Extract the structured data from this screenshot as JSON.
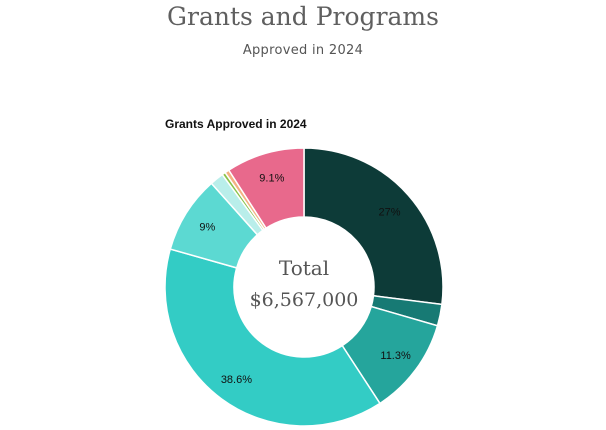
{
  "header": {
    "title": "Grants and Programs",
    "subtitle": "Approved in 2024"
  },
  "chart_data": {
    "type": "pie",
    "title": "Grants Approved in 2024",
    "donut": true,
    "center_label": {
      "line1": "Total",
      "line2": "$6,567,000"
    },
    "slices": [
      {
        "value": 27.0,
        "label": "27%",
        "color": "#0d3b38"
      },
      {
        "value": 2.5,
        "label": "",
        "color": "#177a74"
      },
      {
        "value": 11.3,
        "label": "11.3%",
        "color": "#25a59c"
      },
      {
        "value": 38.6,
        "label": "38.6%",
        "color": "#33ccc5"
      },
      {
        "value": 9.0,
        "label": "9%",
        "color": "#5cd9d2"
      },
      {
        "value": 1.6,
        "label": "",
        "color": "#b9eeea"
      },
      {
        "value": 0.4,
        "label": "",
        "color": "#8bc34a"
      },
      {
        "value": 0.5,
        "label": "",
        "color": "#f4b183"
      },
      {
        "value": 9.1,
        "label": "9.1%",
        "color": "#e8698c"
      }
    ]
  }
}
